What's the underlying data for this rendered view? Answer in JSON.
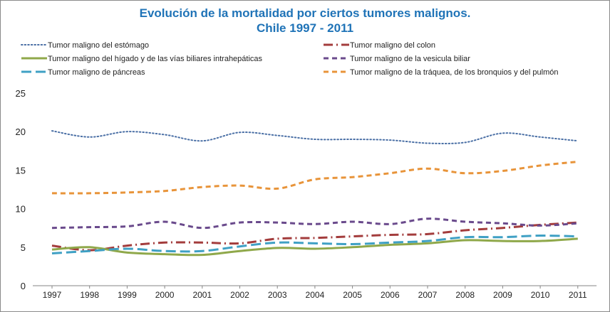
{
  "chart_data": {
    "type": "line",
    "title_line1": "Evolución de la mortalidad por ciertos tumores malignos.",
    "title_line2": "Chile 1997 - 2011",
    "xlabel": "",
    "ylabel": "",
    "ylim": [
      0,
      25
    ],
    "yticks": [
      "0",
      "5",
      "10",
      "15",
      "20",
      "25"
    ],
    "categories": [
      "1997",
      "1998",
      "1999",
      "2000",
      "2001",
      "2002",
      "2003",
      "2004",
      "2005",
      "2006",
      "2007",
      "2008",
      "2009",
      "2010",
      "2011"
    ],
    "grid": false,
    "legend_position": "top",
    "series": [
      {
        "name": "Tumor maligno del estómago",
        "color": "#4a6fa5",
        "style": "dotted",
        "values": [
          20.1,
          19.3,
          20.0,
          19.6,
          18.8,
          19.9,
          19.5,
          19.0,
          19.0,
          18.9,
          18.5,
          18.6,
          19.8,
          19.3,
          18.8
        ]
      },
      {
        "name": "Tumor maligno del colon",
        "color": "#a33c3c",
        "style": "dashdot",
        "values": [
          5.2,
          4.6,
          5.2,
          5.6,
          5.6,
          5.5,
          6.1,
          6.2,
          6.4,
          6.6,
          6.7,
          7.2,
          7.5,
          7.9,
          8.2
        ]
      },
      {
        "name": "Tumor maligno del hígado y de las vías biliares intrahepáticas",
        "color": "#8fa84a",
        "style": "solid",
        "values": [
          4.7,
          5.0,
          4.3,
          4.1,
          4.0,
          4.5,
          4.9,
          4.8,
          5.0,
          5.3,
          5.5,
          5.9,
          5.8,
          5.8,
          6.1
        ]
      },
      {
        "name": "Tumor maligno de la vesicula biliar",
        "color": "#6a4a8c",
        "style": "dashed",
        "values": [
          7.5,
          7.6,
          7.7,
          8.3,
          7.5,
          8.2,
          8.2,
          8.0,
          8.3,
          8.0,
          8.7,
          8.3,
          8.1,
          7.8,
          8.1
        ]
      },
      {
        "name": "Tumor maligno de páncreas",
        "color": "#3fa0c4",
        "style": "longdash",
        "values": [
          4.2,
          4.5,
          4.8,
          4.5,
          4.5,
          5.1,
          5.6,
          5.5,
          5.4,
          5.6,
          5.8,
          6.3,
          6.3,
          6.5,
          6.4
        ]
      },
      {
        "name": "Tumor maligno de la tráquea, de los bronquios y del pulmón",
        "color": "#e8943a",
        "style": "dashed",
        "values": [
          12.0,
          12.0,
          12.1,
          12.3,
          12.8,
          13.0,
          12.6,
          13.8,
          14.1,
          14.6,
          15.2,
          14.6,
          14.9,
          15.6,
          16.1
        ]
      }
    ]
  }
}
